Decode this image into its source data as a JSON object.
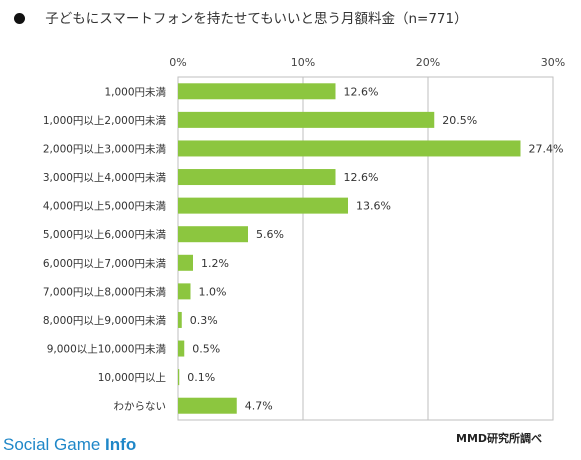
{
  "chart_data": {
    "type": "bar",
    "orientation": "horizontal",
    "title": "子どもにスマートフォンを持たせてもいいと思う月額料金（n=771）",
    "categories": [
      "1,000円未満",
      "1,000円以上2,000円未満",
      "2,000円以上3,000円未満",
      "3,000円以上4,000円未満",
      "4,000円以上5,000円未満",
      "5,000円以上6,000円未満",
      "6,000円以上7,000円未満",
      "7,000円以上8,000円未満",
      "8,000円以上9,000円未満",
      "9,000以上10,000円未満",
      "10,000円以上",
      "わからない"
    ],
    "values": [
      12.6,
      20.5,
      27.4,
      12.6,
      13.6,
      5.6,
      1.2,
      1.0,
      0.3,
      0.5,
      0.1,
      4.7
    ],
    "value_labels": [
      "12.6%",
      "20.5%",
      "27.4%",
      "12.6%",
      "13.6%",
      "5.6%",
      "1.2%",
      "1.0%",
      "0.3%",
      "0.5%",
      "0.1%",
      "4.7%"
    ],
    "xlim": [
      0,
      30
    ],
    "x_ticks": [
      "0%",
      "10%",
      "20%",
      "30%"
    ],
    "grid": true,
    "bar_color": "#8cc63f"
  },
  "watermark": {
    "brand": "Social Game ",
    "brand_bold": "Info"
  },
  "source": "MMD研究所調べ"
}
